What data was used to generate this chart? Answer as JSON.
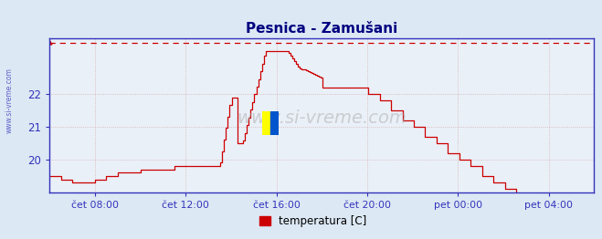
{
  "title": "Pesnica - Zamušani",
  "legend_label": "temperatura [C]",
  "legend_color": "#cc0000",
  "background_color": "#dce8f4",
  "plot_bg_color": "#eaf0f8",
  "line_color": "#cc0000",
  "dashed_line_color": "#cc0000",
  "axis_color": "#3333bb",
  "grid_color": "#cc9999",
  "title_color": "#000080",
  "tick_label_color": "#3333bb",
  "watermark_text": "www.si-vreme.com",
  "side_text": "www.si-vreme.com",
  "ylim": [
    19.0,
    23.7
  ],
  "yticks": [
    20,
    21,
    22
  ],
  "dashed_y": 23.55,
  "xtick_labels": [
    "čet 08:00",
    "čet 12:00",
    "čet 16:00",
    "čet 20:00",
    "pet 00:00",
    "pet 04:00"
  ],
  "tick_hours": [
    8,
    12,
    16,
    20,
    24,
    28
  ],
  "xlim": [
    6,
    30
  ],
  "n_points": 288,
  "start_hour": 6,
  "end_hour": 30
}
